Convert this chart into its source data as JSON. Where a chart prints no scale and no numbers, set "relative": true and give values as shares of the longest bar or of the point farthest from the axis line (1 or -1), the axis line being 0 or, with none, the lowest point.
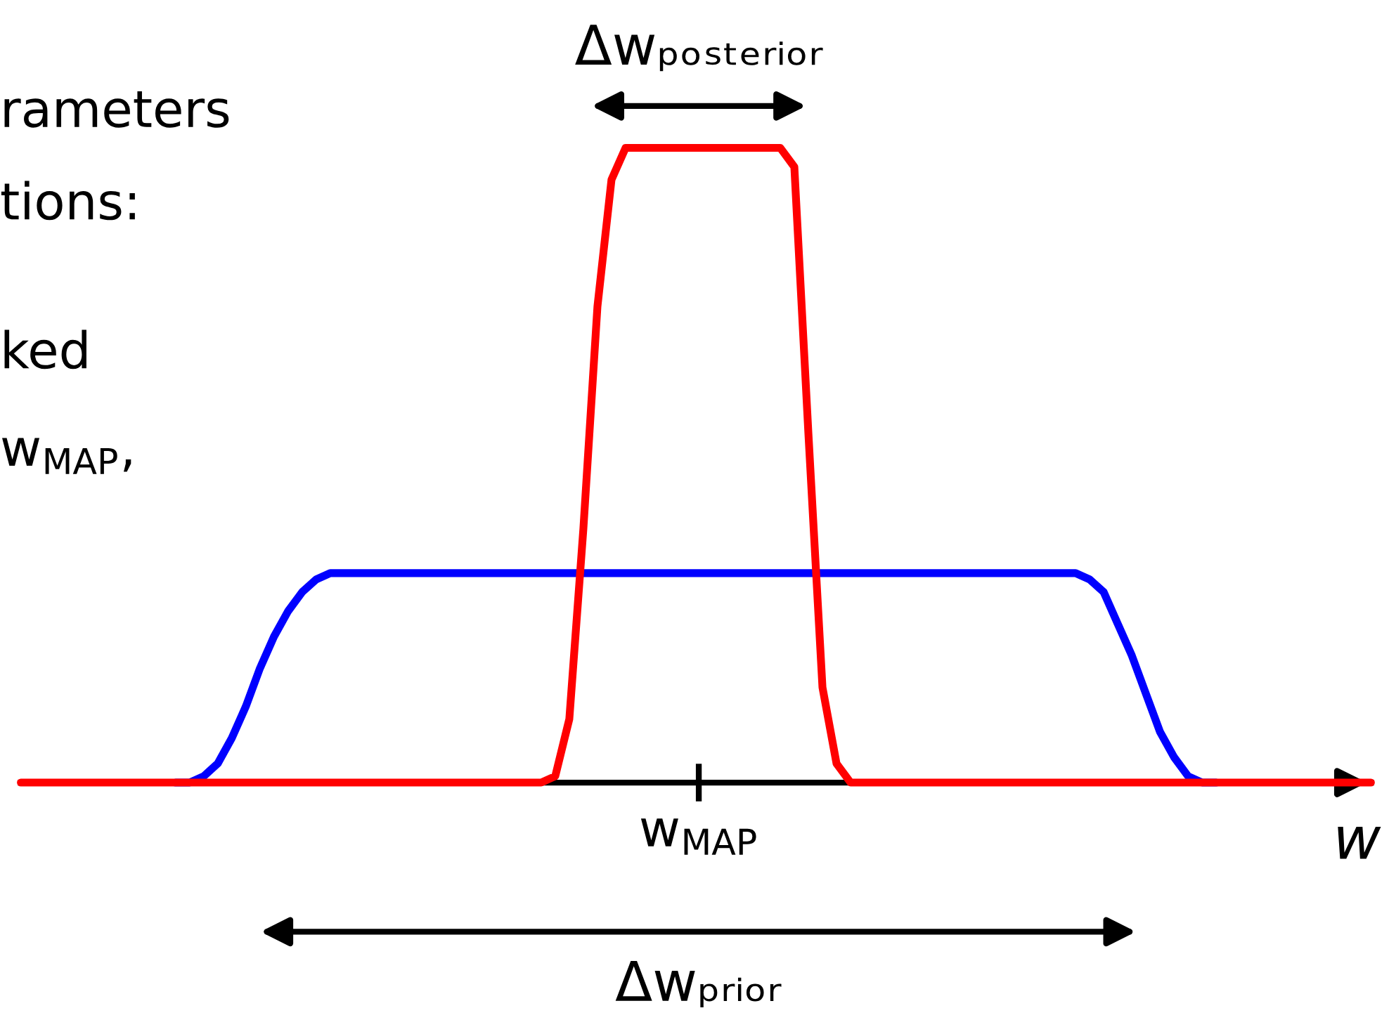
{
  "chart_data": {
    "type": "line",
    "relative": true,
    "xlabel": "w",
    "legend": false,
    "marker": "none",
    "line_style": "solid",
    "categories": [
      null,
      null,
      null,
      null,
      null,
      null,
      null,
      null,
      null,
      null,
      null,
      null,
      null,
      null,
      null,
      null,
      null,
      null,
      null,
      null,
      null,
      null,
      null,
      null,
      null,
      null,
      null,
      null,
      null,
      null,
      null,
      null,
      null,
      null,
      null,
      null,
      null,
      null,
      null,
      null,
      null,
      null,
      null,
      null,
      null,
      null,
      null,
      null,
      null,
      null,
      null,
      null,
      null,
      null,
      null,
      null,
      null,
      null,
      null,
      null,
      null,
      null,
      null,
      null,
      null,
      null,
      null,
      null,
      null,
      null,
      null,
      null,
      null,
      null,
      null,
      null,
      null,
      null,
      null,
      null,
      null,
      null,
      null,
      null,
      null,
      null,
      null,
      null,
      null,
      null,
      null,
      null,
      null,
      null,
      null,
      null,
      null
    ],
    "series": [
      {
        "color": "#0000ff",
        "values": [
          null,
          null,
          null,
          null,
          null,
          null,
          null,
          null,
          null,
          null,
          null,
          0,
          0,
          0.01,
          0.03,
          0.07,
          0.12,
          0.18,
          0.23,
          0.27,
          0.3,
          0.32,
          0.33,
          0.33,
          0.33,
          0.33,
          0.33,
          0.33,
          0.33,
          0.33,
          0.33,
          0.33,
          0.33,
          0.33,
          0.33,
          0.33,
          0.33,
          0.33,
          0.33,
          0.33,
          0.33,
          0.33,
          0.33,
          0.33,
          0.33,
          0.33,
          0.33,
          0.33,
          0.33,
          0.33,
          0.33,
          0.33,
          0.33,
          0.33,
          0.33,
          0.33,
          0.33,
          0.33,
          0.33,
          0.33,
          0.33,
          0.33,
          0.33,
          0.33,
          0.33,
          0.33,
          0.33,
          0.33,
          0.33,
          0.33,
          0.33,
          0.33,
          0.33,
          0.33,
          0.33,
          0.33,
          0.32,
          0.3,
          0.25,
          0.2,
          0.14,
          0.08,
          0.04,
          0.01,
          0,
          0,
          null,
          null,
          null,
          null,
          null,
          null,
          null,
          null,
          null,
          null,
          null
        ]
      },
      {
        "color": "#ff0000",
        "values": [
          0,
          0,
          0,
          0,
          0,
          0,
          0,
          0,
          0,
          0,
          0,
          0,
          0,
          0,
          0,
          0,
          0,
          0,
          0,
          0,
          0,
          0,
          0,
          0,
          0,
          0,
          0,
          0,
          0,
          0,
          0,
          0,
          0,
          0,
          0,
          0,
          0,
          0,
          0.01,
          0.1,
          0.4,
          0.75,
          0.95,
          1,
          1,
          1,
          1,
          1,
          1,
          1,
          1,
          1,
          1,
          1,
          1,
          0.97,
          0.55,
          0.15,
          0.03,
          0,
          0,
          0,
          0,
          0,
          0,
          0,
          0,
          0,
          0,
          0,
          0,
          0,
          0,
          0,
          0,
          0,
          0,
          0,
          0,
          0,
          0,
          0,
          0,
          0,
          0,
          0,
          0,
          0,
          0,
          0,
          0,
          0,
          0,
          0,
          0,
          0,
          0
        ]
      }
    ],
    "annotations": [
      "rameters",
      "tions:",
      "ked",
      "w$_{MAP}$,",
      "Δwₚₒₛₜₑᵣᵢₒᵣ",
      "Δwₚᵣᵢₒᵣ",
      "w$_{MAP}$"
    ]
  }
}
